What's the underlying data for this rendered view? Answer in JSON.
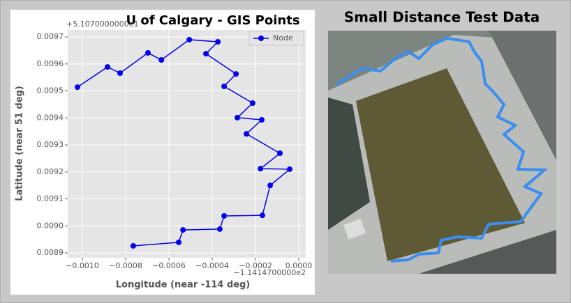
{
  "chart_data": {
    "type": "line",
    "title": "U of Calgary - GIS Points",
    "xlabel": "Longitude (near -114 deg)",
    "ylabel": "Latitude (near 51 deg)",
    "x_offset_label": "−1.1414700000e2",
    "y_offset_label": "+5.1070000000e1",
    "xlim": [
      -0.001068,
      3.23e-05
    ],
    "ylim": [
      0.008882,
      0.009726
    ],
    "xticks": [
      {
        "value": -0.001,
        "label": "−0.0010"
      },
      {
        "value": -0.0008,
        "label": "−0.0008"
      },
      {
        "value": -0.0006,
        "label": "−0.0006"
      },
      {
        "value": -0.0004,
        "label": "−0.0004"
      },
      {
        "value": -0.0002,
        "label": "−0.0002"
      },
      {
        "value": 0,
        "label": "0.0000"
      }
    ],
    "yticks": [
      {
        "value": 0.0089,
        "label": "0.0089"
      },
      {
        "value": 0.009,
        "label": "0.0090"
      },
      {
        "value": 0.0091,
        "label": "0.0091"
      },
      {
        "value": 0.0092,
        "label": "0.0092"
      },
      {
        "value": 0.0093,
        "label": "0.0093"
      },
      {
        "value": 0.0094,
        "label": "0.0094"
      },
      {
        "value": 0.0095,
        "label": "0.0095"
      },
      {
        "value": 0.0096,
        "label": "0.0096"
      },
      {
        "value": 0.0097,
        "label": "0.0097"
      }
    ],
    "grid": true,
    "legend": "upper right",
    "series": [
      {
        "name": "Node",
        "color": "#0000ee",
        "x": [
          -0.001023,
          -0.000884,
          -0.000826,
          -0.000697,
          -0.000635,
          -0.000506,
          -0.000374,
          -0.000429,
          -0.00029,
          -0.000345,
          -0.000213,
          -0.000284,
          -0.000171,
          -0.000242,
          -8.7e-05,
          -0.000177,
          -4.2e-05,
          -0.000132,
          -0.000168,
          -0.000345,
          -0.000365,
          -0.000535,
          -0.000555,
          -0.000765
        ],
        "values": [
          0.009514,
          0.009589,
          0.009566,
          0.009641,
          0.009615,
          0.00969,
          0.009682,
          0.009638,
          0.009563,
          0.009517,
          0.009455,
          0.009401,
          0.009393,
          0.009341,
          0.009269,
          0.009212,
          0.00921,
          0.00915,
          0.009039,
          0.009037,
          0.008988,
          0.008985,
          0.008939,
          0.008926
        ]
      }
    ]
  },
  "image_panel": {
    "title": "Small Distance Test Data"
  }
}
